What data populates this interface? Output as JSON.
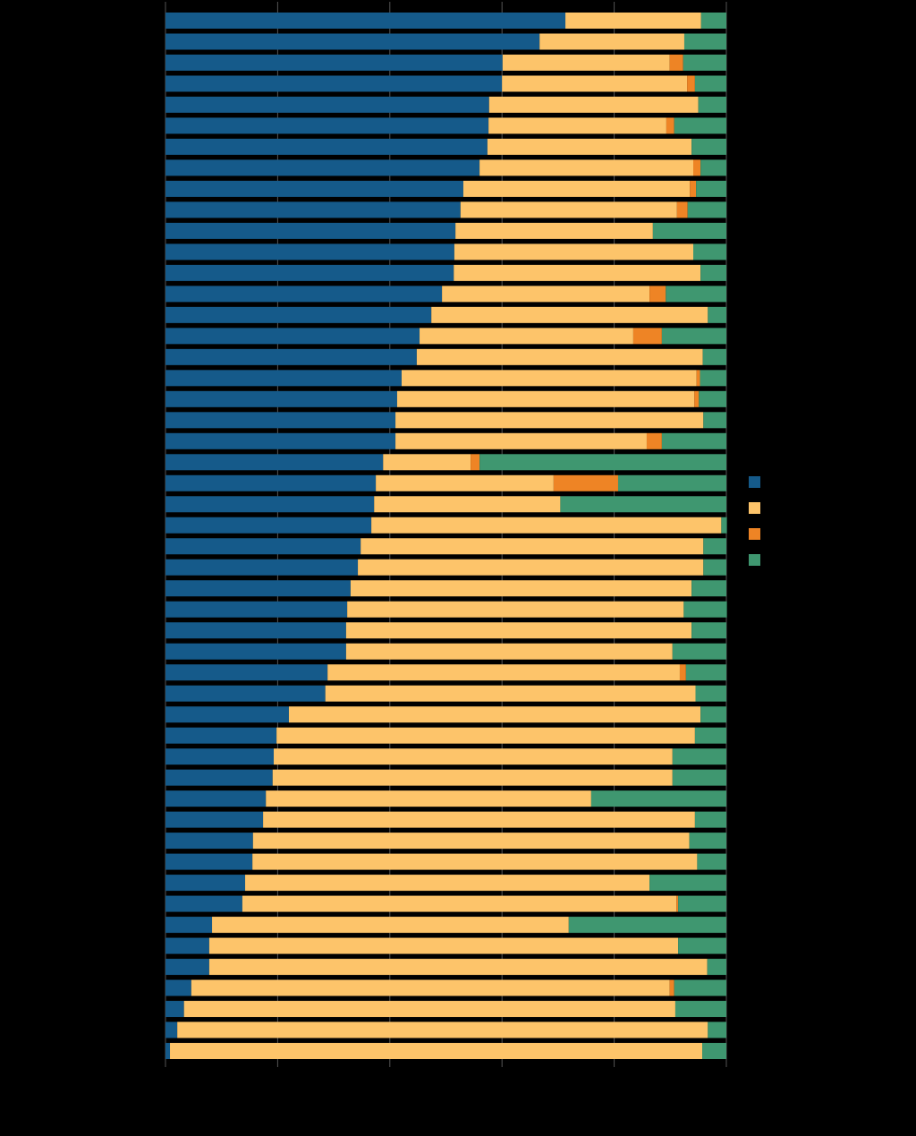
{
  "chart_data": {
    "type": "stacked-barh",
    "categories": [
      null,
      null,
      null,
      null,
      null,
      null,
      null,
      null,
      null,
      null,
      null,
      null,
      null,
      null,
      null,
      null,
      null,
      null,
      null,
      null,
      null,
      null,
      null,
      null,
      null,
      null,
      null,
      null,
      null,
      null,
      null,
      null,
      null,
      null,
      null,
      null,
      null,
      null,
      null,
      null,
      null,
      null,
      null,
      null,
      null,
      null,
      null,
      null,
      null,
      null
    ],
    "series": [
      {
        "color": "#155a8a",
        "values": [
          71.3,
          66.7,
          60.1,
          60.0,
          57.7,
          57.6,
          57.4,
          56.0,
          53.1,
          52.6,
          51.7,
          51.5,
          51.4,
          49.3,
          47.4,
          45.3,
          44.8,
          42.1,
          41.3,
          41.0,
          41.0,
          38.8,
          37.5,
          37.2,
          36.7,
          34.8,
          34.3,
          33.0,
          32.4,
          32.2,
          32.2,
          28.9,
          28.5,
          22.0,
          19.8,
          19.3,
          19.1,
          17.9,
          17.4,
          15.6,
          15.5,
          14.2,
          13.7,
          8.3,
          7.8,
          7.8,
          4.6,
          3.3,
          2.1,
          0.8
        ]
      },
      {
        "color": "#fdc46a",
        "values": [
          24.2,
          25.8,
          29.8,
          33.0,
          37.3,
          31.7,
          36.4,
          38.1,
          40.4,
          38.6,
          35.2,
          42.6,
          44.0,
          37.0,
          49.3,
          38.1,
          51.0,
          52.6,
          53.0,
          54.9,
          44.8,
          15.6,
          31.7,
          33.2,
          62.4,
          61.1,
          61.6,
          60.8,
          60.0,
          61.6,
          58.2,
          62.8,
          66.0,
          73.4,
          74.6,
          71.1,
          71.3,
          58.0,
          77.0,
          77.8,
          79.3,
          72.1,
          77.4,
          63.6,
          83.6,
          88.8,
          85.3,
          87.6,
          94.6,
          94.9
        ]
      },
      {
        "color": "#ee8425",
        "values": [
          0,
          0,
          2.4,
          1.4,
          0,
          1.4,
          0,
          1.3,
          1.1,
          1.9,
          0,
          0,
          0,
          2.9,
          0,
          5.1,
          0,
          0.6,
          0.8,
          0,
          2.7,
          1.6,
          11.5,
          0,
          0,
          0,
          0,
          0,
          0,
          0,
          0,
          1.1,
          0,
          0,
          0,
          0,
          0,
          0,
          0,
          0,
          0,
          0,
          0.3,
          0,
          0,
          0,
          0.8,
          0,
          0,
          0
        ]
      },
      {
        "color": "#3f9770",
        "values": [
          4.5,
          7.5,
          7.7,
          5.6,
          5.0,
          9.3,
          6.2,
          4.6,
          5.4,
          6.9,
          13.1,
          5.9,
          4.6,
          10.8,
          3.3,
          11.5,
          4.2,
          4.7,
          4.9,
          4.1,
          11.5,
          44.0,
          19.3,
          29.6,
          1.0,
          4.1,
          4.1,
          6.2,
          7.7,
          6.2,
          9.6,
          7.2,
          5.5,
          4.6,
          5.6,
          9.6,
          9.6,
          24.1,
          5.6,
          6.6,
          5.2,
          13.7,
          8.6,
          28.1,
          8.6,
          3.4,
          9.3,
          9.1,
          3.3,
          4.3
        ]
      }
    ],
    "xlim": [
      0,
      100
    ],
    "xticks": [
      0,
      20,
      40,
      60,
      80,
      100
    ],
    "grid": true
  }
}
